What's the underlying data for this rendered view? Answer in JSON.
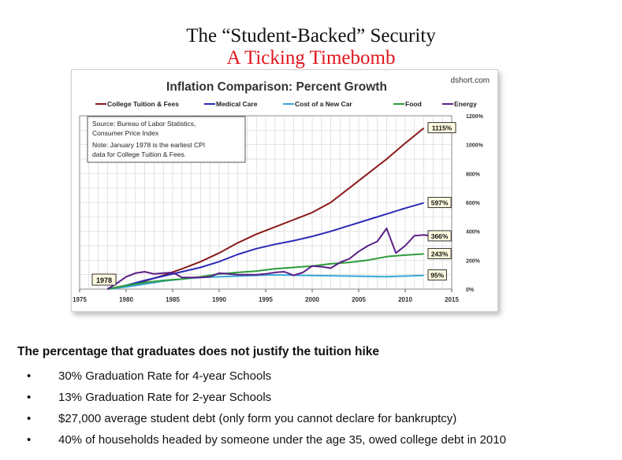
{
  "slide": {
    "title": "The “Student-Backed” Security",
    "subtitle": "A Ticking Timebomb",
    "caption": "The percentage that graduates does not justify the tuition hike",
    "bullets": [
      "30% Graduation Rate for 4-year Schools",
      "13% Graduation Rate for 2-year Schools",
      "$27,000 average student debt (only form you cannot declare for bankruptcy)",
      "40% of households headed by someone under the age 35, owed college debt in 2010"
    ],
    "bullet_glyph": "•"
  },
  "chart_data": {
    "type": "line",
    "title": "Inflation Comparison: Percent Growth",
    "watermark": "dshort.com",
    "note_lines": [
      "Source: Bureau of Labor Statistics,",
      "Consumer Price Index",
      "Note: January 1978 is the earliest CPI",
      "data for College Tuition & Fees."
    ],
    "start_marker": "1978",
    "xlim": [
      1975,
      2015
    ],
    "ylim": [
      0,
      1200
    ],
    "x_ticks": [
      "1975",
      "1980",
      "1985",
      "1990",
      "1995",
      "2000",
      "2005",
      "2010",
      "2015"
    ],
    "y_ticks": [
      "0%",
      "200%",
      "400%",
      "600%",
      "800%",
      "1000%",
      "1200%"
    ],
    "y_tick_values": [
      0,
      200,
      400,
      600,
      800,
      1000,
      1200
    ],
    "grid": true,
    "legend_position": "top",
    "series": [
      {
        "name": "College Tuition & Fees",
        "color": "#8b1a1a",
        "end_label": "1115%",
        "x": [
          1978,
          1980,
          1982,
          1984,
          1986,
          1988,
          1990,
          1992,
          1994,
          1996,
          1998,
          2000,
          2002,
          2004,
          2006,
          2008,
          2010,
          2012
        ],
        "y": [
          0,
          20,
          55,
          95,
          140,
          190,
          250,
          320,
          380,
          430,
          480,
          530,
          600,
          700,
          800,
          900,
          1010,
          1115
        ]
      },
      {
        "name": "Medical Care",
        "color": "#2a2ab8",
        "end_label": "597%",
        "x": [
          1978,
          1980,
          1982,
          1984,
          1986,
          1988,
          1990,
          1992,
          1994,
          1996,
          1998,
          2000,
          2002,
          2004,
          2006,
          2008,
          2010,
          2012
        ],
        "y": [
          0,
          25,
          60,
          90,
          120,
          150,
          190,
          240,
          280,
          310,
          335,
          365,
          400,
          440,
          480,
          520,
          560,
          597
        ]
      },
      {
        "name": "Cost of a New Car",
        "color": "#3aa6d6",
        "end_label": "95%",
        "x": [
          1978,
          1980,
          1982,
          1984,
          1986,
          1988,
          1990,
          1992,
          1994,
          1996,
          1998,
          2000,
          2002,
          2004,
          2006,
          2008,
          2010,
          2012
        ],
        "y": [
          0,
          15,
          35,
          55,
          70,
          80,
          85,
          90,
          95,
          98,
          96,
          94,
          92,
          90,
          88,
          86,
          90,
          95
        ]
      },
      {
        "name": "Food",
        "color": "#2e9b3a",
        "end_label": "243%",
        "x": [
          1978,
          1980,
          1982,
          1984,
          1986,
          1988,
          1990,
          1992,
          1994,
          1996,
          1998,
          2000,
          2002,
          2004,
          2006,
          2008,
          2010,
          2012
        ],
        "y": [
          0,
          25,
          45,
          60,
          70,
          85,
          105,
          115,
          125,
          140,
          150,
          160,
          175,
          185,
          200,
          225,
          235,
          243
        ]
      },
      {
        "name": "Energy",
        "color": "#5b1f86",
        "end_label": "366%",
        "x": [
          1978,
          1979,
          1980,
          1981,
          1982,
          1983,
          1984,
          1985,
          1986,
          1987,
          1988,
          1989,
          1990,
          1991,
          1992,
          1993,
          1994,
          1995,
          1996,
          1997,
          1998,
          1999,
          2000,
          2001,
          2002,
          2003,
          2004,
          2005,
          2006,
          2007,
          2008,
          2009,
          2010,
          2011,
          2012,
          2013
        ],
        "y": [
          0,
          40,
          85,
          110,
          120,
          105,
          110,
          115,
          80,
          80,
          80,
          85,
          110,
          105,
          100,
          100,
          100,
          105,
          115,
          120,
          95,
          115,
          160,
          155,
          145,
          185,
          210,
          260,
          300,
          330,
          420,
          250,
          300,
          370,
          375,
          366
        ]
      }
    ]
  }
}
